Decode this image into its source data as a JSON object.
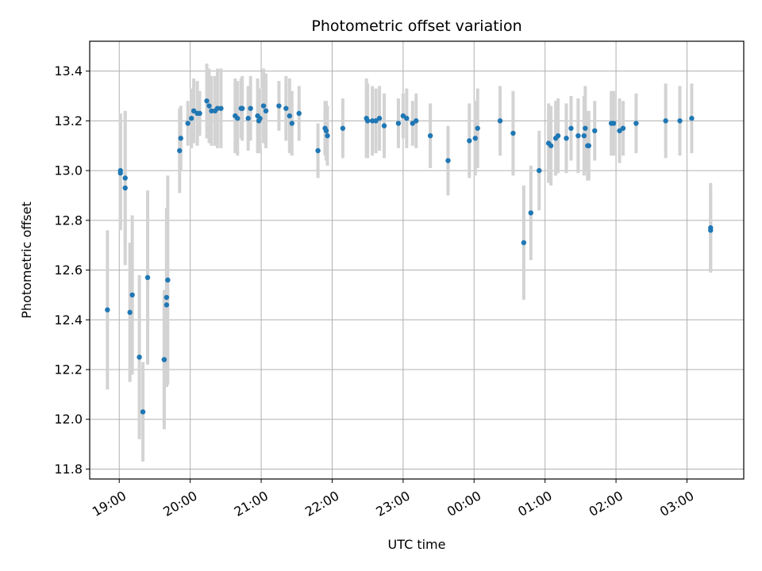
{
  "chart_data": {
    "type": "scatter",
    "title": "Photometric offset variation",
    "xlabel": "UTC time",
    "ylabel": "Photometric offset",
    "x_tick_labels": [
      "19:00",
      "20:00",
      "21:00",
      "22:00",
      "23:00",
      "00:00",
      "01:00",
      "02:00",
      "03:00"
    ],
    "y_ticks": [
      11.8,
      12.0,
      12.2,
      12.4,
      12.6,
      12.8,
      13.0,
      13.2,
      13.4
    ],
    "y_tick_labels": [
      "11.8",
      "12.0",
      "12.2",
      "12.4",
      "12.6",
      "12.8",
      "13.0",
      "13.2",
      "13.4"
    ],
    "xlim": [
      "18:35",
      "03:48"
    ],
    "ylim": [
      11.76,
      13.52
    ],
    "grid": true,
    "colors": {
      "point": "#1f77b4",
      "errorbar": "#d3d3d3",
      "grid": "#b0b0b0"
    },
    "series": [
      {
        "points": [
          [
            "18:50",
            12.44,
            0.32
          ],
          [
            "19:01",
            13.0,
            0.23
          ],
          [
            "19:01",
            12.99,
            0.23
          ],
          [
            "19:05",
            12.97,
            0.27
          ],
          [
            "19:05",
            12.93,
            0.31
          ],
          [
            "19:09",
            12.43,
            0.28
          ],
          [
            "19:11",
            12.5,
            0.32
          ],
          [
            "19:17",
            12.25,
            0.33
          ],
          [
            "19:20",
            12.03,
            0.2
          ],
          [
            "19:24",
            12.57,
            0.35
          ],
          [
            "19:38",
            12.24,
            0.28
          ],
          [
            "19:38",
            12.24,
            0.26
          ],
          [
            "19:40",
            12.46,
            0.33
          ],
          [
            "19:40",
            12.49,
            0.36
          ],
          [
            "19:41",
            12.56,
            0.42
          ],
          [
            "19:51",
            13.08,
            0.17
          ],
          [
            "19:52",
            13.13,
            0.13
          ],
          [
            "19:58",
            13.19,
            0.09
          ],
          [
            "20:01",
            13.21,
            0.12
          ],
          [
            "20:03",
            13.24,
            0.13
          ],
          [
            "20:06",
            13.23,
            0.13
          ],
          [
            "20:08",
            13.23,
            0.09
          ],
          [
            "20:14",
            13.28,
            0.15
          ],
          [
            "20:16",
            13.26,
            0.15
          ],
          [
            "20:18",
            13.24,
            0.14
          ],
          [
            "20:21",
            13.24,
            0.14
          ],
          [
            "20:23",
            13.25,
            0.16
          ],
          [
            "20:26",
            13.25,
            0.16
          ],
          [
            "20:38",
            13.22,
            0.15
          ],
          [
            "20:40",
            13.21,
            0.15
          ],
          [
            "20:43",
            13.25,
            0.12
          ],
          [
            "20:44",
            13.25,
            0.13
          ],
          [
            "20:49",
            13.21,
            0.13
          ],
          [
            "20:51",
            13.25,
            0.13
          ],
          [
            "20:57",
            13.22,
            0.15
          ],
          [
            "20:58",
            13.2,
            0.13
          ],
          [
            "20:59",
            13.21,
            0.12
          ],
          [
            "21:02",
            13.26,
            0.15
          ],
          [
            "21:04",
            13.24,
            0.15
          ],
          [
            "21:15",
            13.26,
            0.1
          ],
          [
            "21:21",
            13.25,
            0.13
          ],
          [
            "21:24",
            13.22,
            0.15
          ],
          [
            "21:26",
            13.19,
            0.13
          ],
          [
            "21:32",
            13.23,
            0.11
          ],
          [
            "21:48",
            13.08,
            0.11
          ],
          [
            "21:54",
            13.17,
            0.11
          ],
          [
            "21:55",
            13.16,
            0.12
          ],
          [
            "21:56",
            13.14,
            0.12
          ],
          [
            "22:09",
            13.17,
            0.12
          ],
          [
            "22:29",
            13.21,
            0.16
          ],
          [
            "22:30",
            13.2,
            0.15
          ],
          [
            "22:34",
            13.2,
            0.14
          ],
          [
            "22:37",
            13.2,
            0.13
          ],
          [
            "22:40",
            13.21,
            0.13
          ],
          [
            "22:44",
            13.18,
            0.13
          ],
          [
            "22:56",
            13.19,
            0.1
          ],
          [
            "23:00",
            13.22,
            0.09
          ],
          [
            "23:03",
            13.21,
            0.12
          ],
          [
            "23:08",
            13.19,
            0.09
          ],
          [
            "23:11",
            13.2,
            0.11
          ],
          [
            "23:23",
            13.14,
            0.13
          ],
          [
            "23:38",
            13.04,
            0.14
          ],
          [
            "23:56",
            13.12,
            0.15
          ],
          [
            "00:01",
            13.13,
            0.15
          ],
          [
            "00:03",
            13.17,
            0.16
          ],
          [
            "00:22",
            13.2,
            0.14
          ],
          [
            "00:33",
            13.15,
            0.17
          ],
          [
            "00:42",
            12.71,
            0.23
          ],
          [
            "00:48",
            12.83,
            0.19
          ],
          [
            "00:55",
            13.0,
            0.16
          ],
          [
            "01:03",
            13.11,
            0.16
          ],
          [
            "01:05",
            13.1,
            0.16
          ],
          [
            "01:09",
            13.13,
            0.15
          ],
          [
            "01:11",
            13.14,
            0.15
          ],
          [
            "01:18",
            13.13,
            0.14
          ],
          [
            "01:22",
            13.17,
            0.13
          ],
          [
            "01:28",
            13.14,
            0.15
          ],
          [
            "01:33",
            13.14,
            0.16
          ],
          [
            "01:34",
            13.17,
            0.17
          ],
          [
            "01:36",
            13.1,
            0.14
          ],
          [
            "01:37",
            13.1,
            0.14
          ],
          [
            "01:42",
            13.16,
            0.12
          ],
          [
            "01:56",
            13.19,
            0.13
          ],
          [
            "01:58",
            13.19,
            0.13
          ],
          [
            "02:03",
            13.16,
            0.13
          ],
          [
            "02:06",
            13.17,
            0.11
          ],
          [
            "02:17",
            13.19,
            0.12
          ],
          [
            "02:42",
            13.2,
            0.15
          ],
          [
            "02:54",
            13.2,
            0.14
          ],
          [
            "03:04",
            13.21,
            0.14
          ],
          [
            "03:20",
            12.77,
            0.18
          ],
          [
            "03:20",
            12.76,
            0.17
          ]
        ]
      }
    ]
  }
}
